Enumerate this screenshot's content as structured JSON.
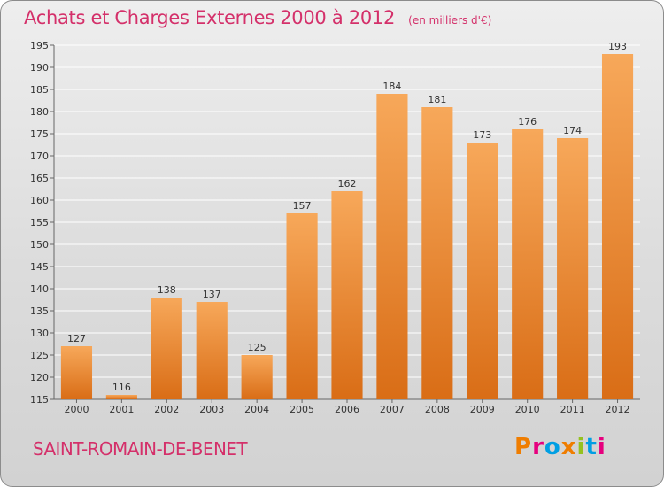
{
  "header": {
    "title": "Achats et Charges Externes 2000 à 2012",
    "unit": "(en milliers d'€)"
  },
  "footer": {
    "commune": "SAINT-ROMAIN-DE-BENET",
    "logo_letters": [
      "P",
      "r",
      "o",
      "x",
      "i",
      "t",
      "i"
    ],
    "logo_colors": [
      "#ef7d00",
      "#e6007e",
      "#009fe3",
      "#ef7d00",
      "#95c11f",
      "#009fe3",
      "#e6007e"
    ]
  },
  "colors": {
    "bar_top": "#f7a85a",
    "bar_bottom": "#d96d16",
    "title": "#d4306a",
    "grid": "#ffffff"
  },
  "chart_data": {
    "type": "bar",
    "categories": [
      "2000",
      "2001",
      "2002",
      "2003",
      "2004",
      "2005",
      "2006",
      "2007",
      "2008",
      "2009",
      "2010",
      "2011",
      "2012"
    ],
    "values": [
      127,
      116,
      138,
      137,
      125,
      157,
      162,
      184,
      181,
      173,
      176,
      174,
      193
    ],
    "ylim": [
      115,
      195
    ],
    "yticks": [
      115,
      120,
      125,
      130,
      135,
      140,
      145,
      150,
      155,
      160,
      165,
      170,
      175,
      180,
      185,
      190,
      195
    ],
    "grid": true,
    "xlabel": "",
    "ylabel": ""
  }
}
